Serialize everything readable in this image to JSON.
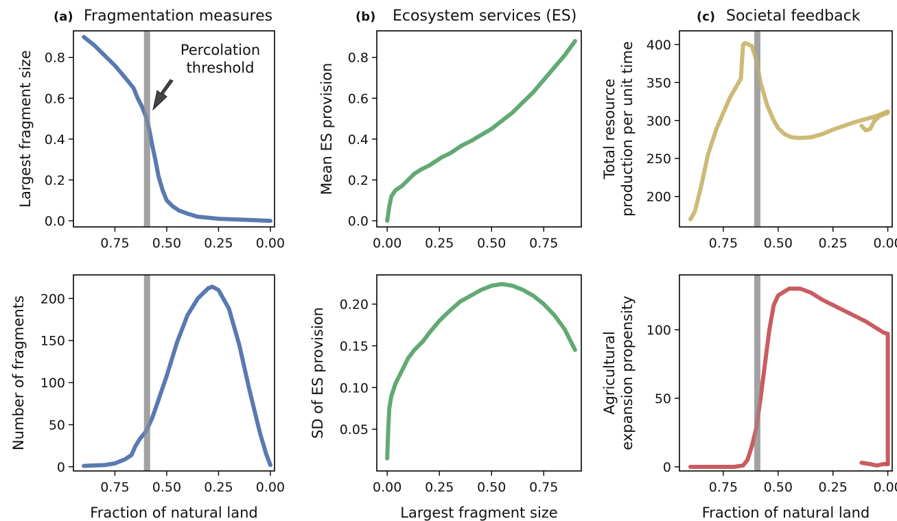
{
  "colors": {
    "blue": "#4c6eaa",
    "green": "#55a268",
    "gold": "#c9b46a",
    "red": "#c44e52",
    "threshold": "#a0a0a0"
  },
  "panel_titles": {
    "a": {
      "letter": "(a)",
      "title": "Fragmentation measures"
    },
    "b": {
      "letter": "(b)",
      "title": "Ecosystem services (ES)"
    },
    "c": {
      "letter": "(c)",
      "title": "Societal feedback"
    }
  },
  "annotation": {
    "line1": "Percolation",
    "line2": "threshold"
  },
  "chart_data": [
    {
      "id": "a-top",
      "type": "line",
      "panel": "(a)",
      "xlabel": "",
      "ylabel": [
        "Largest fragment size"
      ],
      "xlim": [
        0.95,
        -0.02
      ],
      "ylim": [
        -0.03,
        0.93
      ],
      "xticks": [
        0.75,
        0.5,
        0.25,
        0.0
      ],
      "xticklabels": [
        "0.75",
        "0.50",
        "0.25",
        "0.00"
      ],
      "yticks": [
        0.0,
        0.2,
        0.4,
        0.6,
        0.8
      ],
      "yticklabels": [
        "0.0",
        "0.2",
        "0.4",
        "0.6",
        "0.8"
      ],
      "threshold_x": 0.595,
      "series": [
        {
          "color": "blue",
          "x": [
            0.9,
            0.85,
            0.8,
            0.75,
            0.7,
            0.66,
            0.64,
            0.62,
            0.6,
            0.585,
            0.57,
            0.555,
            0.54,
            0.52,
            0.5,
            0.47,
            0.44,
            0.4,
            0.35,
            0.3,
            0.25,
            0.2,
            0.15,
            0.1,
            0.05,
            0.0
          ],
          "y": [
            0.9,
            0.86,
            0.81,
            0.76,
            0.7,
            0.65,
            0.6,
            0.56,
            0.51,
            0.45,
            0.37,
            0.3,
            0.22,
            0.15,
            0.1,
            0.07,
            0.05,
            0.035,
            0.02,
            0.015,
            0.01,
            0.008,
            0.006,
            0.004,
            0.002,
            0.0
          ]
        }
      ]
    },
    {
      "id": "a-bottom",
      "type": "line",
      "panel": "(a)",
      "xlabel": "Fraction of natural land",
      "ylabel": [
        "Number of fragments"
      ],
      "xlim": [
        0.95,
        -0.02
      ],
      "ylim": [
        -5,
        228
      ],
      "xticks": [
        0.75,
        0.5,
        0.25,
        0.0
      ],
      "xticklabels": [
        "0.75",
        "0.50",
        "0.25",
        "0.00"
      ],
      "yticks": [
        0,
        50,
        100,
        150,
        200
      ],
      "yticklabels": [
        "0",
        "50",
        "100",
        "150",
        "200"
      ],
      "threshold_x": 0.595,
      "series": [
        {
          "color": "blue",
          "x": [
            0.9,
            0.8,
            0.75,
            0.7,
            0.67,
            0.65,
            0.63,
            0.6,
            0.57,
            0.55,
            0.5,
            0.45,
            0.4,
            0.35,
            0.3,
            0.28,
            0.25,
            0.2,
            0.15,
            0.1,
            0.05,
            0.02,
            0.0
          ],
          "y": [
            1,
            2,
            4,
            9,
            14,
            25,
            33,
            42,
            58,
            72,
            108,
            148,
            180,
            200,
            212,
            214,
            210,
            188,
            145,
            90,
            40,
            15,
            2
          ]
        }
      ]
    },
    {
      "id": "b-top",
      "type": "line",
      "panel": "(b)",
      "xlabel": "",
      "ylabel": [
        "Mean ES provision"
      ],
      "xlim": [
        -0.05,
        0.93
      ],
      "ylim": [
        -0.03,
        0.93
      ],
      "xticks": [
        0.0,
        0.25,
        0.5,
        0.75
      ],
      "xticklabels": [
        "0.00",
        "0.25",
        "0.50",
        "0.75"
      ],
      "yticks": [
        0.0,
        0.2,
        0.4,
        0.6,
        0.8
      ],
      "yticklabels": [
        "0.0",
        "0.2",
        "0.4",
        "0.6",
        "0.8"
      ],
      "series": [
        {
          "color": "green",
          "x": [
            0.0,
            0.01,
            0.02,
            0.04,
            0.07,
            0.1,
            0.13,
            0.16,
            0.2,
            0.23,
            0.26,
            0.3,
            0.33,
            0.36,
            0.4,
            0.45,
            0.5,
            0.55,
            0.6,
            0.65,
            0.7,
            0.75,
            0.8,
            0.85,
            0.9
          ],
          "y": [
            0.0,
            0.07,
            0.12,
            0.15,
            0.17,
            0.2,
            0.23,
            0.25,
            0.27,
            0.29,
            0.31,
            0.33,
            0.35,
            0.37,
            0.39,
            0.42,
            0.45,
            0.49,
            0.53,
            0.58,
            0.63,
            0.69,
            0.75,
            0.81,
            0.88
          ]
        }
      ]
    },
    {
      "id": "b-bottom",
      "type": "line",
      "panel": "(b)",
      "xlabel": "Largest fragment size",
      "ylabel": [
        "SD of ES provision"
      ],
      "xlim": [
        -0.05,
        0.93
      ],
      "ylim": [
        0.0,
        0.235
      ],
      "xticks": [
        0.0,
        0.25,
        0.5,
        0.75
      ],
      "xticklabels": [
        "0.00",
        "0.25",
        "0.50",
        "0.75"
      ],
      "yticks": [
        0.05,
        0.1,
        0.15,
        0.2
      ],
      "yticklabels": [
        "0.05",
        "0.10",
        "0.15",
        "0.20"
      ],
      "series": [
        {
          "color": "green",
          "x": [
            0.0,
            0.005,
            0.01,
            0.02,
            0.04,
            0.07,
            0.1,
            0.13,
            0.17,
            0.2,
            0.25,
            0.3,
            0.35,
            0.4,
            0.45,
            0.5,
            0.55,
            0.6,
            0.65,
            0.7,
            0.75,
            0.8,
            0.85,
            0.9
          ],
          "y": [
            0.015,
            0.05,
            0.075,
            0.09,
            0.105,
            0.12,
            0.135,
            0.145,
            0.155,
            0.165,
            0.18,
            0.192,
            0.203,
            0.21,
            0.217,
            0.222,
            0.224,
            0.222,
            0.217,
            0.21,
            0.2,
            0.187,
            0.17,
            0.145
          ]
        }
      ]
    },
    {
      "id": "c-top",
      "type": "line",
      "panel": "(c)",
      "xlabel": "",
      "ylabel": [
        "Total resource",
        "production per unit time"
      ],
      "xlim": [
        0.95,
        -0.02
      ],
      "ylim": [
        160,
        418
      ],
      "xticks": [
        0.75,
        0.5,
        0.25,
        0.0
      ],
      "xticklabels": [
        "0.75",
        "0.50",
        "0.25",
        "0.00"
      ],
      "yticks": [
        200,
        250,
        300,
        350,
        400
      ],
      "yticklabels": [
        "200",
        "250",
        "300",
        "350",
        "400"
      ],
      "threshold_x": 0.595,
      "series": [
        {
          "color": "gold",
          "x": [
            0.9,
            0.88,
            0.85,
            0.82,
            0.78,
            0.75,
            0.72,
            0.69,
            0.67,
            0.66,
            0.65,
            0.62,
            0.6,
            0.58,
            0.55,
            0.52,
            0.5,
            0.47,
            0.44,
            0.4,
            0.35,
            0.3,
            0.25,
            0.2,
            0.15,
            0.1,
            0.05,
            0.0
          ],
          "y": [
            170,
            180,
            215,
            255,
            290,
            310,
            330,
            345,
            355,
            400,
            402,
            398,
            380,
            350,
            320,
            300,
            290,
            282,
            278,
            277,
            278,
            282,
            288,
            293,
            298,
            302,
            306,
            312
          ]
        },
        {
          "color": "gold",
          "x": [
            0.12,
            0.1,
            0.08,
            0.06,
            0.04,
            0.02,
            0.0
          ],
          "y": [
            293,
            287,
            289,
            300,
            305,
            308,
            310
          ]
        }
      ]
    },
    {
      "id": "c-bottom",
      "type": "line",
      "panel": "(c)",
      "xlabel": "Fraction of natural land",
      "ylabel": [
        "Agricultural",
        "expansion propensity"
      ],
      "xlim": [
        0.95,
        -0.02
      ],
      "ylim": [
        -3,
        140
      ],
      "xticks": [
        0.75,
        0.5,
        0.25,
        0.0
      ],
      "xticklabels": [
        "0.75",
        "0.50",
        "0.25",
        "0.00"
      ],
      "yticks": [
        0,
        50,
        100
      ],
      "yticklabels": [
        "0",
        "50",
        "100"
      ],
      "threshold_x": 0.595,
      "series": [
        {
          "color": "red",
          "x": [
            0.9,
            0.8,
            0.7,
            0.66,
            0.64,
            0.62,
            0.6,
            0.58,
            0.56,
            0.54,
            0.52,
            0.5,
            0.45,
            0.4,
            0.35,
            0.3,
            0.25,
            0.2,
            0.15,
            0.1,
            0.05,
            0.02,
            0.0,
            0.0
          ],
          "y": [
            0,
            0,
            0,
            1,
            5,
            15,
            28,
            50,
            75,
            100,
            118,
            125,
            130,
            130,
            127,
            122,
            118,
            114,
            110,
            106,
            101,
            98,
            97,
            2
          ]
        },
        {
          "color": "red",
          "x": [
            0.12,
            0.08,
            0.05,
            0.02,
            0.0
          ],
          "y": [
            3,
            2,
            1,
            2,
            2
          ]
        }
      ]
    }
  ]
}
